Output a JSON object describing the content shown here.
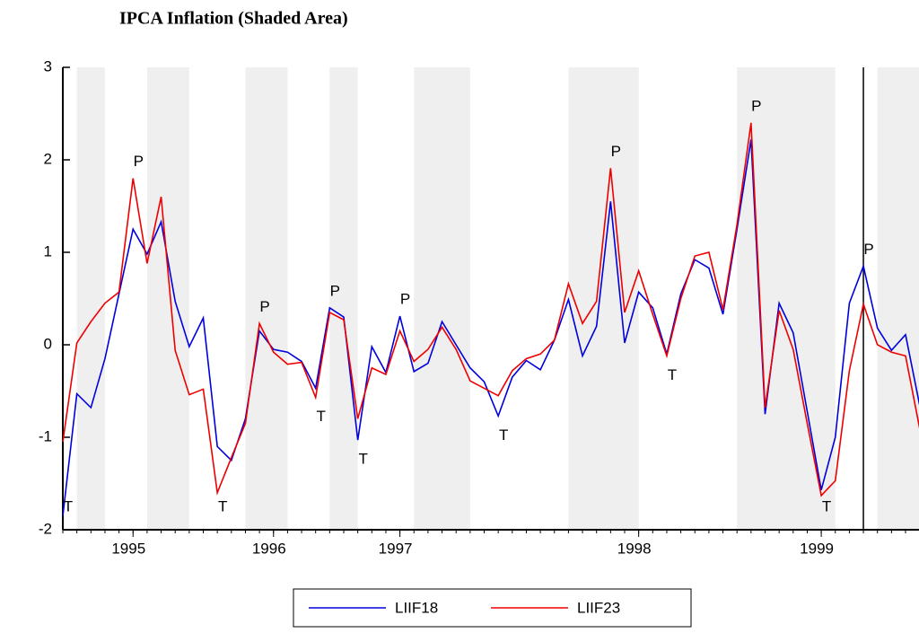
{
  "chart_data": {
    "type": "line",
    "title": "IPCA Inflation (Shaded Area)",
    "categories": [
      null,
      null,
      null,
      null,
      null,
      "1995",
      null,
      null,
      null,
      null,
      null,
      null,
      null,
      null,
      null,
      "1996",
      null,
      null,
      null,
      null,
      null,
      null,
      null,
      null,
      "1997",
      null,
      null,
      null,
      null,
      null,
      null,
      null,
      null,
      null,
      null,
      null,
      null,
      null,
      null,
      null,
      null,
      "1998",
      null,
      null,
      null,
      null,
      null,
      null,
      null,
      null,
      null,
      null,
      null,
      null,
      "1999",
      null,
      null,
      null,
      null,
      null,
      null,
      null
    ],
    "series": [
      {
        "name": "LIIF18",
        "color": "#0000dd",
        "values": [
          -1.85,
          -0.53,
          -0.68,
          -0.15,
          0.55,
          1.25,
          0.98,
          1.33,
          0.47,
          -0.02,
          0.29,
          -1.1,
          -1.25,
          -0.8,
          0.15,
          -0.05,
          -0.08,
          -0.18,
          -0.47,
          0.4,
          0.3,
          -1.03,
          -0.02,
          -0.3,
          0.31,
          -0.29,
          -0.2,
          0.25,
          0.0,
          -0.25,
          -0.4,
          -0.77,
          -0.35,
          -0.17,
          -0.27,
          0.05,
          0.49,
          -0.12,
          0.2,
          1.55,
          0.02,
          0.57,
          0.4,
          -0.1,
          0.55,
          0.92,
          0.83,
          0.33,
          1.25,
          2.22,
          -0.75,
          0.45,
          0.13,
          -0.72,
          -1.57,
          -1.0,
          0.45,
          0.85,
          0.18,
          -0.06,
          0.11,
          -0.65
        ]
      },
      {
        "name": "LIIF23",
        "color": "#ee0000",
        "values": [
          -1.05,
          0.02,
          0.25,
          0.45,
          0.57,
          1.8,
          0.88,
          1.6,
          -0.06,
          -0.54,
          -0.48,
          -1.6,
          -1.22,
          -0.85,
          0.23,
          -0.08,
          -0.21,
          -0.19,
          -0.57,
          0.35,
          0.27,
          -0.8,
          -0.25,
          -0.32,
          0.15,
          -0.18,
          -0.05,
          0.19,
          -0.05,
          -0.39,
          -0.47,
          -0.55,
          -0.28,
          -0.15,
          -0.1,
          0.05,
          0.66,
          0.23,
          0.47,
          1.91,
          0.35,
          0.8,
          0.33,
          -0.12,
          0.5,
          0.96,
          1.0,
          0.38,
          1.3,
          2.4,
          -0.68,
          0.37,
          -0.05,
          -0.85,
          -1.63,
          -1.47,
          -0.28,
          0.44,
          0.0,
          -0.08,
          -0.12,
          -0.9
        ]
      }
    ],
    "ylim": [
      -2,
      3
    ],
    "yticks": [
      -2,
      -1,
      0,
      1,
      2,
      3
    ],
    "shaded": [
      [
        1,
        3
      ],
      [
        6,
        9
      ],
      [
        13,
        16
      ],
      [
        19,
        21
      ],
      [
        25,
        29
      ],
      [
        36,
        41
      ],
      [
        48,
        55
      ],
      [
        58,
        61
      ]
    ],
    "vertical_line": 57,
    "annotations": [
      {
        "text": "T",
        "index": 0
      },
      {
        "text": "P",
        "index": 5
      },
      {
        "text": "T",
        "index": 11
      },
      {
        "text": "P",
        "index": 14
      },
      {
        "text": "T",
        "index": 18
      },
      {
        "text": "P",
        "index": 19
      },
      {
        "text": "T",
        "index": 21
      },
      {
        "text": "P",
        "index": 24
      },
      {
        "text": "T",
        "index": 31
      },
      {
        "text": "P",
        "index": 39
      },
      {
        "text": "T",
        "index": 43
      },
      {
        "text": "P",
        "index": 49
      },
      {
        "text": "T",
        "index": 54
      },
      {
        "text": "P",
        "index": 57
      }
    ],
    "legend": "bottom"
  }
}
